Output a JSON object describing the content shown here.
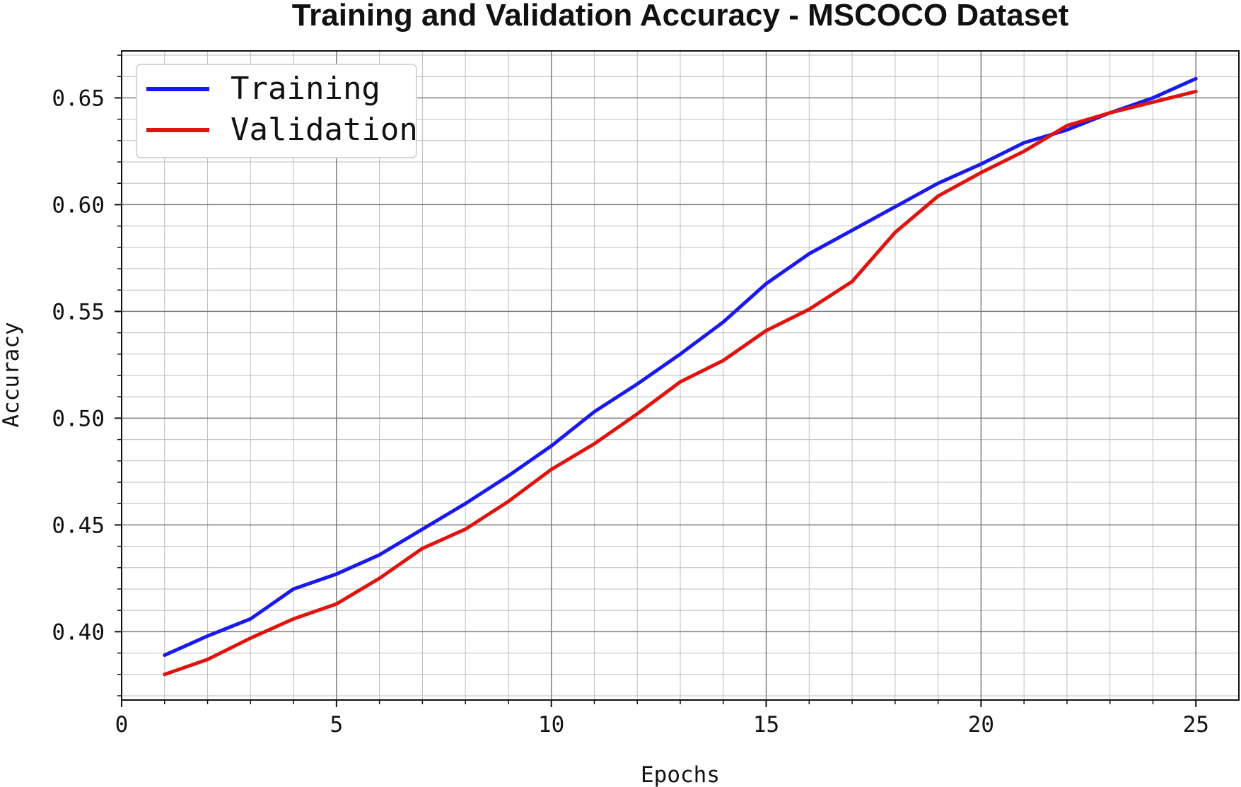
{
  "chart_data": {
    "type": "line",
    "title": "Training and Validation Accuracy - MSCOCO Dataset",
    "xlabel": "Epochs",
    "ylabel": "Accuracy",
    "xlim": [
      0,
      26
    ],
    "ylim": [
      0.368,
      0.672
    ],
    "xticks": [
      0,
      5,
      10,
      15,
      20,
      25
    ],
    "yticks": [
      0.4,
      0.45,
      0.5,
      0.55,
      0.6,
      0.65
    ],
    "xtick_labels": [
      "0",
      "5",
      "10",
      "15",
      "20",
      "25"
    ],
    "ytick_labels": [
      "0.40",
      "0.45",
      "0.50",
      "0.55",
      "0.60",
      "0.65"
    ],
    "minor_grid": true,
    "grid": true,
    "legend_position": "top-left",
    "x": [
      1,
      2,
      3,
      4,
      5,
      6,
      7,
      8,
      9,
      10,
      11,
      12,
      13,
      14,
      15,
      16,
      17,
      18,
      19,
      20,
      21,
      22,
      23,
      24,
      25
    ],
    "series": [
      {
        "name": "Training",
        "color": "#1a1aee",
        "values": [
          0.389,
          0.398,
          0.406,
          0.42,
          0.427,
          0.436,
          0.448,
          0.46,
          0.473,
          0.487,
          0.503,
          0.516,
          0.53,
          0.545,
          0.563,
          0.577,
          0.588,
          0.599,
          0.61,
          0.619,
          0.629,
          0.635,
          0.643,
          0.65,
          0.659
        ]
      },
      {
        "name": "Validation",
        "color": "#e0140e",
        "values": [
          0.38,
          0.387,
          0.397,
          0.406,
          0.413,
          0.425,
          0.439,
          0.448,
          0.461,
          0.476,
          0.488,
          0.502,
          0.517,
          0.527,
          0.541,
          0.551,
          0.564,
          0.587,
          0.604,
          0.615,
          0.625,
          0.637,
          0.643,
          0.648,
          0.653
        ]
      }
    ]
  }
}
